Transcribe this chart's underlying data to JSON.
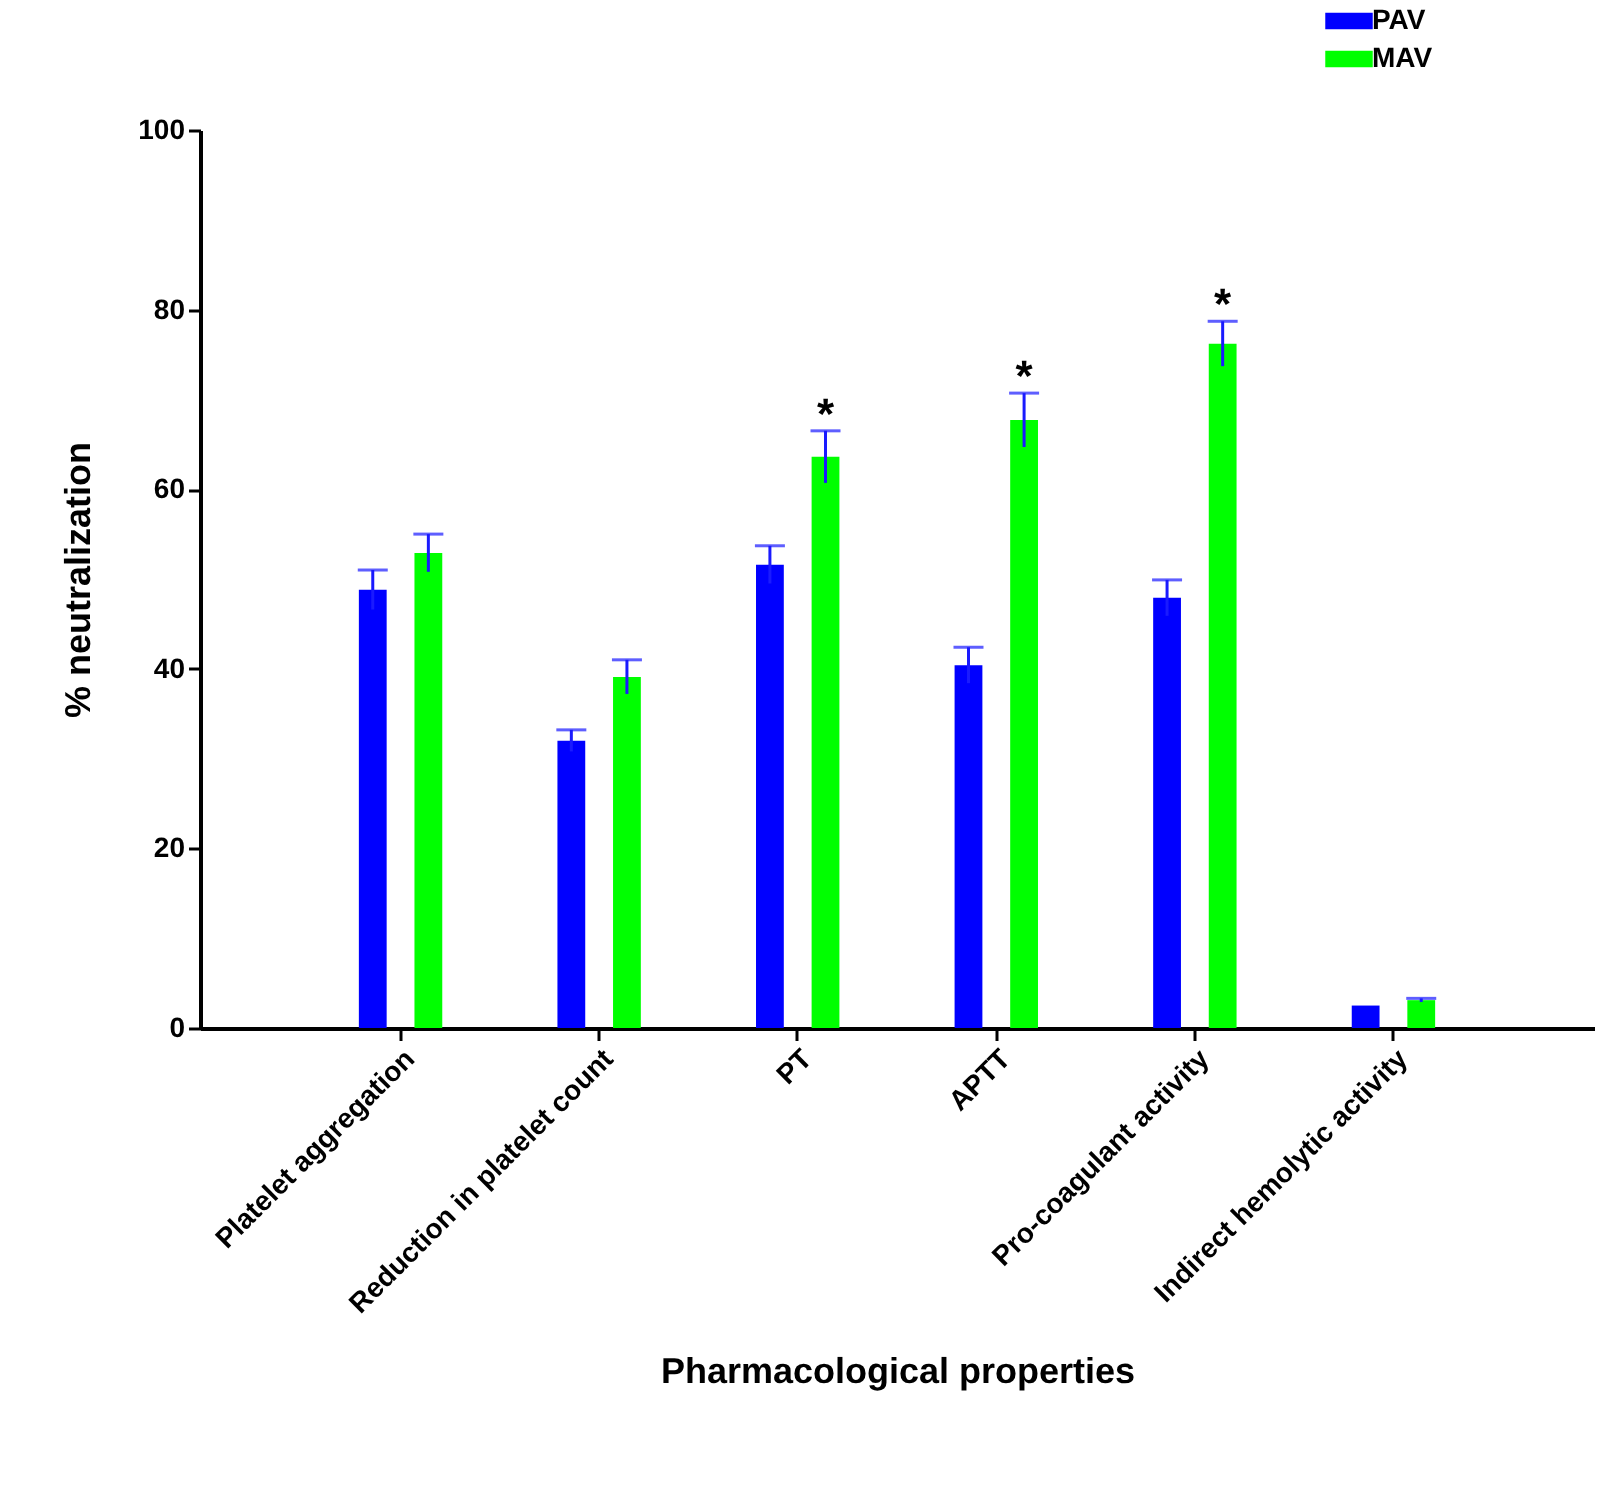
{
  "chart_data": {
    "type": "bar",
    "xlabel": "Pharmacological properties",
    "ylabel": "% neutralization",
    "categories": [
      "Platelet aggregation",
      "Reduction in platelet count",
      "PT",
      "APTT",
      "Pro-coagulant activity",
      "Indirect hemolytic activity"
    ],
    "series": [
      {
        "name": "PAV",
        "color": "#0000ff",
        "values": [
          48.8,
          32.0,
          51.6,
          40.4,
          47.9,
          2.5
        ],
        "errors": [
          2.2,
          1.2,
          2.1,
          2.0,
          2.0,
          null
        ]
      },
      {
        "name": "MAV",
        "color": "#00ff00",
        "values": [
          52.9,
          39.1,
          63.6,
          67.7,
          76.2,
          3.1
        ],
        "errors": [
          2.1,
          1.9,
          2.9,
          3.0,
          2.5,
          0.2
        ],
        "value_labels": [
          null,
          null,
          "*",
          "*",
          "*",
          null
        ]
      }
    ],
    "ylim": [
      0,
      100
    ],
    "yticks": [
      0,
      20,
      40,
      60,
      80,
      100
    ],
    "grid": false,
    "legend": "top right"
  }
}
